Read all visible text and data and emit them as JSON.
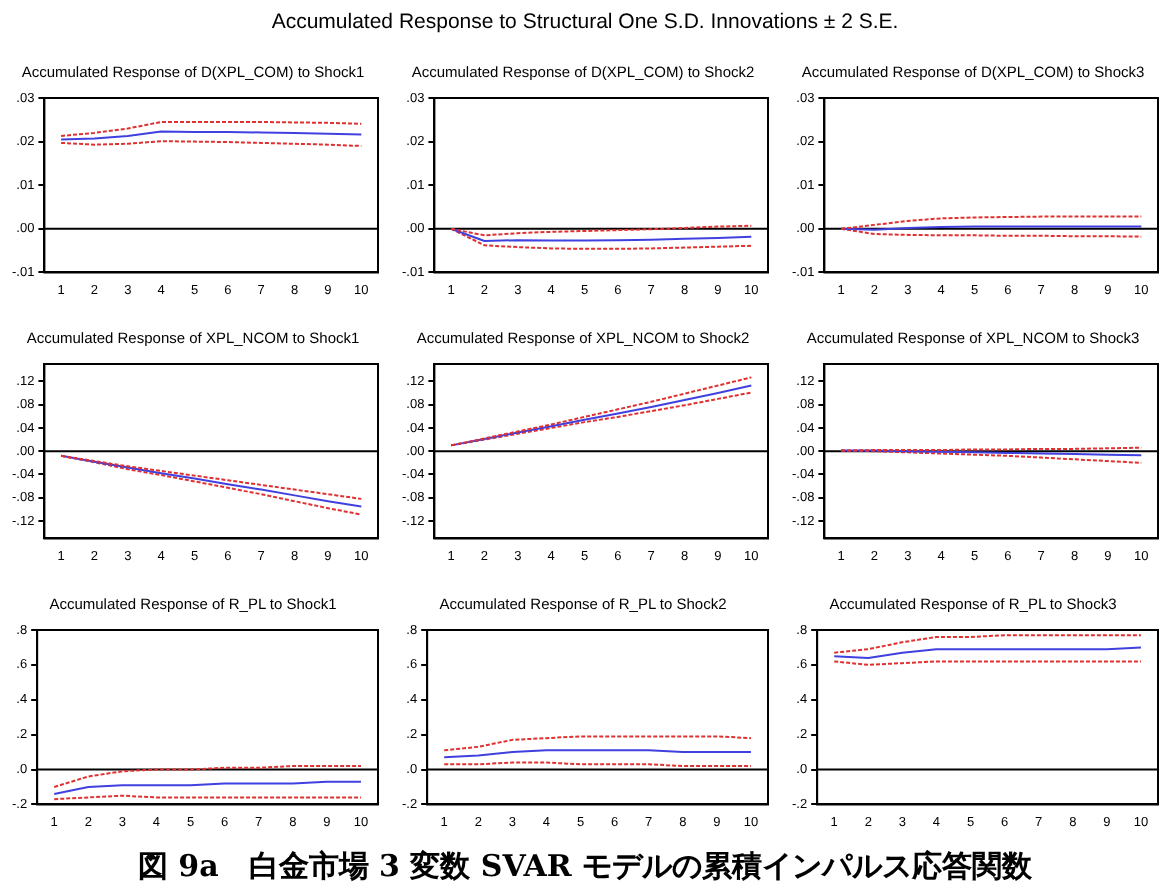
{
  "chart_data": [
    {
      "type": "line",
      "title": "Accumulated Response of D(XPL_COM) to Shock1",
      "annotations": [
        "Accumulated Response to Structural One S.D. Innovations ± 2 S.E."
      ],
      "categories": [
        "1",
        "2",
        "3",
        "4",
        "5",
        "6",
        "7",
        "8",
        "9",
        "10"
      ],
      "ylim": [
        -0.01,
        0.03
      ],
      "yticks": [
        {
          "value": -0.01,
          "label": "-.01"
        },
        {
          "value": 0,
          "label": ".00"
        },
        {
          "value": 0.01,
          "label": ".01"
        },
        {
          "value": 0.02,
          "label": ".02"
        },
        {
          "value": 0.03,
          "label": ".03"
        }
      ],
      "grid": false,
      "legend": false,
      "marker": "none",
      "ref_lines": [
        {
          "axis": "y",
          "value": 0,
          "color": "#000000"
        }
      ],
      "series": [
        {
          "color": "#e03030",
          "line_style": "dashed",
          "values": [
            0.0213,
            0.022,
            0.023,
            0.0245,
            0.0245,
            0.0245,
            0.0245,
            0.0244,
            0.0243,
            0.0241
          ]
        },
        {
          "color": "#4040e0",
          "line_style": "solid",
          "values": [
            0.0205,
            0.0207,
            0.0213,
            0.0223,
            0.0222,
            0.0222,
            0.0221,
            0.022,
            0.0218,
            0.0216
          ]
        },
        {
          "color": "#e03030",
          "line_style": "dashed",
          "values": [
            0.0197,
            0.0193,
            0.0195,
            0.0201,
            0.02,
            0.0199,
            0.0197,
            0.0195,
            0.0193,
            0.019
          ]
        }
      ]
    },
    {
      "type": "line",
      "title": "Accumulated Response of D(XPL_COM) to Shock2",
      "categories": [
        "1",
        "2",
        "3",
        "4",
        "5",
        "6",
        "7",
        "8",
        "9",
        "10"
      ],
      "ylim": [
        -0.01,
        0.03
      ],
      "yticks": [
        {
          "value": -0.01,
          "label": "-.01"
        },
        {
          "value": 0,
          "label": ".00"
        },
        {
          "value": 0.01,
          "label": ".01"
        },
        {
          "value": 0.02,
          "label": ".02"
        },
        {
          "value": 0.03,
          "label": ".03"
        }
      ],
      "grid": false,
      "legend": false,
      "marker": "none",
      "ref_lines": [
        {
          "axis": "y",
          "value": 0,
          "color": "#000000"
        }
      ],
      "series": [
        {
          "color": "#e03030",
          "line_style": "dashed",
          "values": [
            0,
            -0.0015,
            -0.001,
            -0.0007,
            -0.0005,
            -0.0003,
            -0.0001,
            0.0002,
            0.0005,
            0.0007
          ]
        },
        {
          "color": "#4040e0",
          "line_style": "solid",
          "values": [
            0,
            -0.0028,
            -0.0026,
            -0.0027,
            -0.0027,
            -0.0026,
            -0.0025,
            -0.0023,
            -0.0021,
            -0.0018
          ]
        },
        {
          "color": "#e03030",
          "line_style": "dashed",
          "values": [
            0,
            -0.0038,
            -0.0042,
            -0.0045,
            -0.0046,
            -0.0046,
            -0.0045,
            -0.0043,
            -0.0041,
            -0.0039
          ]
        }
      ]
    },
    {
      "type": "line",
      "title": "Accumulated Response of D(XPL_COM) to Shock3",
      "categories": [
        "1",
        "2",
        "3",
        "4",
        "5",
        "6",
        "7",
        "8",
        "9",
        "10"
      ],
      "ylim": [
        -0.01,
        0.03
      ],
      "yticks": [
        {
          "value": -0.01,
          "label": "-.01"
        },
        {
          "value": 0,
          "label": ".00"
        },
        {
          "value": 0.01,
          "label": ".01"
        },
        {
          "value": 0.02,
          "label": ".02"
        },
        {
          "value": 0.03,
          "label": ".03"
        }
      ],
      "grid": false,
      "legend": false,
      "marker": "none",
      "ref_lines": [
        {
          "axis": "y",
          "value": 0,
          "color": "#000000"
        }
      ],
      "series": [
        {
          "color": "#e03030",
          "line_style": "dashed",
          "values": [
            0,
            0.0009,
            0.0018,
            0.0024,
            0.0026,
            0.0027,
            0.0028,
            0.0028,
            0.0028,
            0.0028
          ]
        },
        {
          "color": "#4040e0",
          "line_style": "solid",
          "values": [
            0,
            -0.0002,
            0.0002,
            0.0004,
            0.0005,
            0.0005,
            0.0005,
            0.0005,
            0.0005,
            0.0005
          ]
        },
        {
          "color": "#e03030",
          "line_style": "dashed",
          "values": [
            0,
            -0.0012,
            -0.0014,
            -0.0015,
            -0.0015,
            -0.0016,
            -0.0016,
            -0.0017,
            -0.0017,
            -0.0018
          ]
        }
      ]
    },
    {
      "type": "line",
      "title": "Accumulated Response of XPL_NCOM to Shock1",
      "categories": [
        "1",
        "2",
        "3",
        "4",
        "5",
        "6",
        "7",
        "8",
        "9",
        "10"
      ],
      "ylim": [
        -0.15,
        0.15
      ],
      "yticks": [
        {
          "value": -0.12,
          "label": "-.12"
        },
        {
          "value": -0.08,
          "label": "-.08"
        },
        {
          "value": -0.04,
          "label": "-.04"
        },
        {
          "value": 0,
          "label": ".00"
        },
        {
          "value": 0.04,
          "label": ".04"
        },
        {
          "value": 0.08,
          "label": ".08"
        },
        {
          "value": 0.12,
          "label": ".12"
        }
      ],
      "grid": false,
      "legend": false,
      "marker": "none",
      "ref_lines": [
        {
          "axis": "y",
          "value": 0,
          "color": "#000000"
        }
      ],
      "series": [
        {
          "color": "#e03030",
          "line_style": "dashed",
          "values": [
            -0.008,
            -0.017,
            -0.026,
            -0.034,
            -0.042,
            -0.05,
            -0.058,
            -0.066,
            -0.074,
            -0.082
          ]
        },
        {
          "color": "#4040e0",
          "line_style": "solid",
          "values": [
            -0.008,
            -0.018,
            -0.028,
            -0.038,
            -0.047,
            -0.057,
            -0.066,
            -0.076,
            -0.086,
            -0.095
          ]
        },
        {
          "color": "#e03030",
          "line_style": "dashed",
          "values": [
            -0.008,
            -0.019,
            -0.031,
            -0.041,
            -0.052,
            -0.063,
            -0.074,
            -0.086,
            -0.098,
            -0.109
          ]
        }
      ]
    },
    {
      "type": "line",
      "title": "Accumulated Response of XPL_NCOM to Shock2",
      "categories": [
        "1",
        "2",
        "3",
        "4",
        "5",
        "6",
        "7",
        "8",
        "9",
        "10"
      ],
      "ylim": [
        -0.15,
        0.15
      ],
      "yticks": [
        {
          "value": -0.12,
          "label": "-.12"
        },
        {
          "value": -0.08,
          "label": "-.08"
        },
        {
          "value": -0.04,
          "label": "-.04"
        },
        {
          "value": 0,
          "label": ".00"
        },
        {
          "value": 0.04,
          "label": ".04"
        },
        {
          "value": 0.08,
          "label": ".08"
        },
        {
          "value": 0.12,
          "label": ".12"
        }
      ],
      "grid": false,
      "legend": false,
      "marker": "none",
      "ref_lines": [
        {
          "axis": "y",
          "value": 0,
          "color": "#000000"
        }
      ],
      "series": [
        {
          "color": "#e03030",
          "line_style": "dashed",
          "values": [
            0.01,
            0.022,
            0.034,
            0.046,
            0.059,
            0.072,
            0.085,
            0.099,
            0.113,
            0.127
          ]
        },
        {
          "color": "#4040e0",
          "line_style": "solid",
          "values": [
            0.01,
            0.021,
            0.032,
            0.043,
            0.054,
            0.065,
            0.076,
            0.088,
            0.1,
            0.113
          ]
        },
        {
          "color": "#e03030",
          "line_style": "dashed",
          "values": [
            0.01,
            0.02,
            0.03,
            0.04,
            0.05,
            0.059,
            0.069,
            0.079,
            0.09,
            0.101
          ]
        }
      ]
    },
    {
      "type": "line",
      "title": "Accumulated Response of XPL_NCOM to Shock3",
      "categories": [
        "1",
        "2",
        "3",
        "4",
        "5",
        "6",
        "7",
        "8",
        "9",
        "10"
      ],
      "ylim": [
        -0.15,
        0.15
      ],
      "yticks": [
        {
          "value": -0.12,
          "label": "-.12"
        },
        {
          "value": -0.08,
          "label": "-.08"
        },
        {
          "value": -0.04,
          "label": "-.04"
        },
        {
          "value": 0,
          "label": ".00"
        },
        {
          "value": 0.04,
          "label": ".04"
        },
        {
          "value": 0.08,
          "label": ".08"
        },
        {
          "value": 0.12,
          "label": ".12"
        }
      ],
      "grid": false,
      "legend": false,
      "marker": "none",
      "ref_lines": [
        {
          "axis": "y",
          "value": 0,
          "color": "#000000"
        }
      ],
      "series": [
        {
          "color": "#e03030",
          "line_style": "dashed",
          "values": [
            0.001,
            0.002,
            0.002,
            0.002,
            0.003,
            0.003,
            0.004,
            0.004,
            0.005,
            0.006
          ]
        },
        {
          "color": "#4040e0",
          "line_style": "solid",
          "values": [
            0.001,
            0.001,
            0,
            -0.001,
            -0.002,
            -0.003,
            -0.004,
            -0.005,
            -0.006,
            -0.007
          ]
        },
        {
          "color": "#e03030",
          "line_style": "dashed",
          "values": [
            0.001,
            0,
            -0.002,
            -0.004,
            -0.006,
            -0.008,
            -0.011,
            -0.014,
            -0.017,
            -0.02
          ]
        }
      ]
    },
    {
      "type": "line",
      "title": "Accumulated Response of R_PL to Shock1",
      "categories": [
        "1",
        "2",
        "3",
        "4",
        "5",
        "6",
        "7",
        "8",
        "9",
        "10"
      ],
      "ylim": [
        -0.2,
        0.8
      ],
      "yticks": [
        {
          "value": -0.2,
          "label": "-.2"
        },
        {
          "value": 0,
          "label": ".0"
        },
        {
          "value": 0.2,
          "label": ".2"
        },
        {
          "value": 0.4,
          "label": ".4"
        },
        {
          "value": 0.6,
          "label": ".6"
        },
        {
          "value": 0.8,
          "label": ".8"
        }
      ],
      "grid": false,
      "legend": false,
      "marker": "none",
      "ref_lines": [
        {
          "axis": "y",
          "value": 0,
          "color": "#000000"
        }
      ],
      "series": [
        {
          "color": "#e03030",
          "line_style": "dashed",
          "values": [
            -0.1,
            -0.04,
            -0.01,
            0,
            0,
            0.01,
            0.01,
            0.02,
            0.02,
            0.02
          ]
        },
        {
          "color": "#4040e0",
          "line_style": "solid",
          "values": [
            -0.14,
            -0.1,
            -0.09,
            -0.09,
            -0.09,
            -0.08,
            -0.08,
            -0.08,
            -0.07,
            -0.07
          ]
        },
        {
          "color": "#e03030",
          "line_style": "dashed",
          "values": [
            -0.17,
            -0.16,
            -0.15,
            -0.16,
            -0.16,
            -0.16,
            -0.16,
            -0.16,
            -0.16,
            -0.16
          ]
        }
      ]
    },
    {
      "type": "line",
      "title": "Accumulated Response of R_PL to Shock2",
      "categories": [
        "1",
        "2",
        "3",
        "4",
        "5",
        "6",
        "7",
        "8",
        "9",
        "10"
      ],
      "ylim": [
        -0.2,
        0.8
      ],
      "yticks": [
        {
          "value": -0.2,
          "label": "-.2"
        },
        {
          "value": 0,
          "label": ".0"
        },
        {
          "value": 0.2,
          "label": ".2"
        },
        {
          "value": 0.4,
          "label": ".4"
        },
        {
          "value": 0.6,
          "label": ".6"
        },
        {
          "value": 0.8,
          "label": ".8"
        }
      ],
      "grid": false,
      "legend": false,
      "marker": "none",
      "ref_lines": [
        {
          "axis": "y",
          "value": 0,
          "color": "#000000"
        }
      ],
      "series": [
        {
          "color": "#e03030",
          "line_style": "dashed",
          "values": [
            0.11,
            0.13,
            0.17,
            0.18,
            0.19,
            0.19,
            0.19,
            0.19,
            0.19,
            0.18
          ]
        },
        {
          "color": "#4040e0",
          "line_style": "solid",
          "values": [
            0.07,
            0.08,
            0.1,
            0.11,
            0.11,
            0.11,
            0.11,
            0.1,
            0.1,
            0.1
          ]
        },
        {
          "color": "#e03030",
          "line_style": "dashed",
          "values": [
            0.03,
            0.03,
            0.04,
            0.04,
            0.03,
            0.03,
            0.03,
            0.02,
            0.02,
            0.02
          ]
        }
      ]
    },
    {
      "type": "line",
      "title": "Accumulated Response of R_PL to Shock3",
      "annotations": [
        "図 9a　白金市場 3 変数 SVAR モデルの累積インパルス応答関数"
      ],
      "categories": [
        "1",
        "2",
        "3",
        "4",
        "5",
        "6",
        "7",
        "8",
        "9",
        "10"
      ],
      "ylim": [
        -0.2,
        0.8
      ],
      "yticks": [
        {
          "value": -0.2,
          "label": "-.2"
        },
        {
          "value": 0,
          "label": ".0"
        },
        {
          "value": 0.2,
          "label": ".2"
        },
        {
          "value": 0.4,
          "label": ".4"
        },
        {
          "value": 0.6,
          "label": ".6"
        },
        {
          "value": 0.8,
          "label": ".8"
        }
      ],
      "grid": false,
      "legend": false,
      "marker": "none",
      "ref_lines": [
        {
          "axis": "y",
          "value": 0,
          "color": "#000000"
        }
      ],
      "series": [
        {
          "color": "#e03030",
          "line_style": "dashed",
          "values": [
            0.67,
            0.69,
            0.73,
            0.76,
            0.76,
            0.77,
            0.77,
            0.77,
            0.77,
            0.77
          ]
        },
        {
          "color": "#4040e0",
          "line_style": "solid",
          "values": [
            0.65,
            0.64,
            0.67,
            0.69,
            0.69,
            0.69,
            0.69,
            0.69,
            0.69,
            0.7
          ]
        },
        {
          "color": "#e03030",
          "line_style": "dashed",
          "values": [
            0.62,
            0.6,
            0.61,
            0.62,
            0.62,
            0.62,
            0.62,
            0.62,
            0.62,
            0.62
          ]
        }
      ]
    }
  ]
}
